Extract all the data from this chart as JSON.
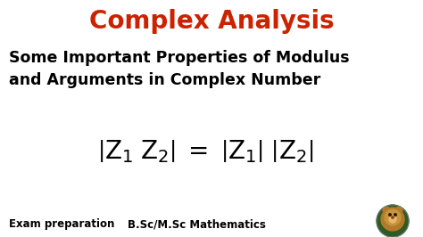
{
  "bg_color": "#ffffff",
  "title": "Complex Analysis",
  "title_color": "#cc2200",
  "title_fontsize": 20,
  "subtitle_line1": "Some Important Properties of Modulus",
  "subtitle_line2": "and Arguments in Complex Number",
  "subtitle_color": "#000000",
  "subtitle_fontsize": 12.5,
  "formula_fontsize": 20,
  "formula_color": "#000000",
  "footer_left": "Exam preparation",
  "footer_center": "B.Sc/M.Sc Mathematics",
  "footer_fontsize": 8.5,
  "footer_color": "#000000",
  "footer_fontweight": "bold",
  "lion_bg": "#2d5a27",
  "lion_face": "#c8933a",
  "lion_mane": "#b07a28"
}
